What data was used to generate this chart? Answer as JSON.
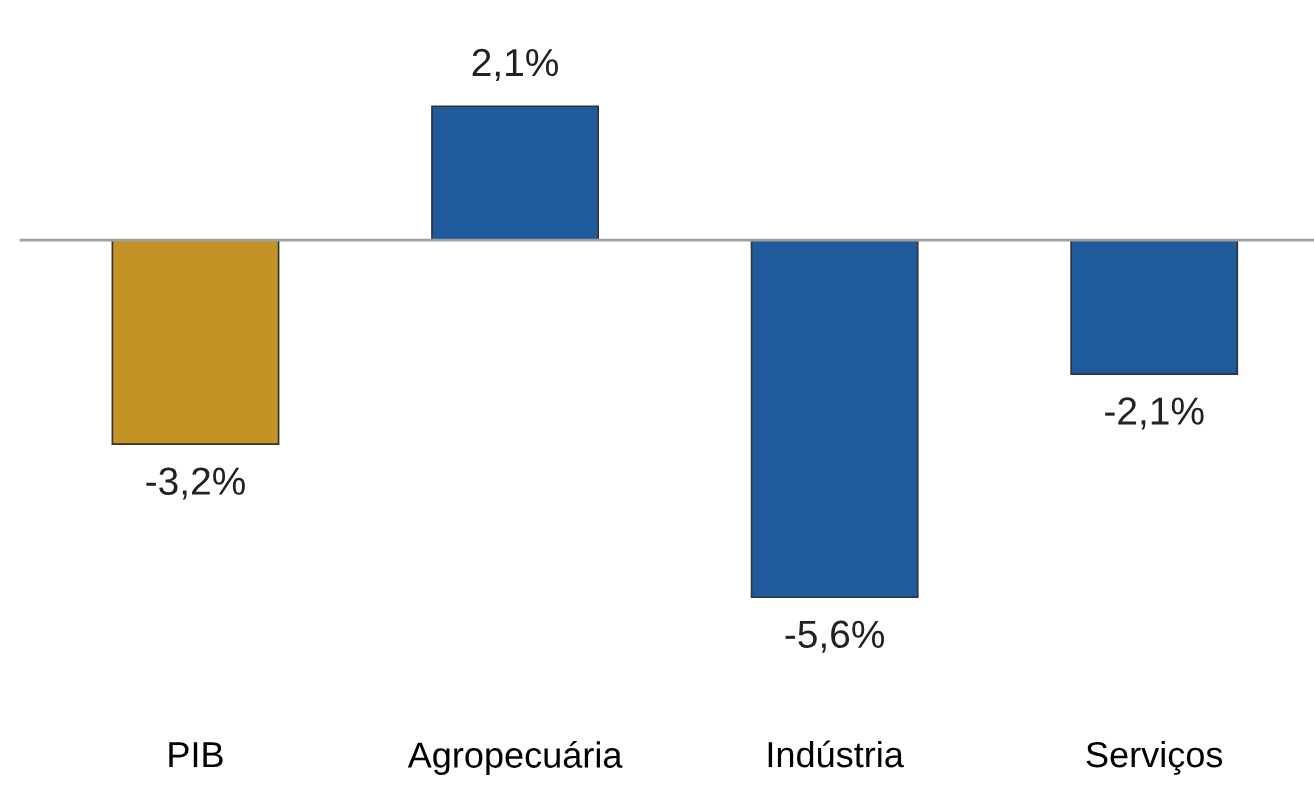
{
  "chart_data": {
    "type": "bar",
    "categories": [
      "PIB",
      "Agropecuária",
      "Indústria",
      "Serviços"
    ],
    "values": [
      -3.2,
      2.1,
      -5.6,
      -2.1
    ],
    "colors": [
      "#c39425",
      "#1f5a9c",
      "#1f5a9c",
      "#1f5a9c"
    ],
    "value_labels": [
      "-3,2%",
      "2,1%",
      "-5,6%",
      "-2,1%"
    ],
    "grid": false,
    "legend": false
  }
}
